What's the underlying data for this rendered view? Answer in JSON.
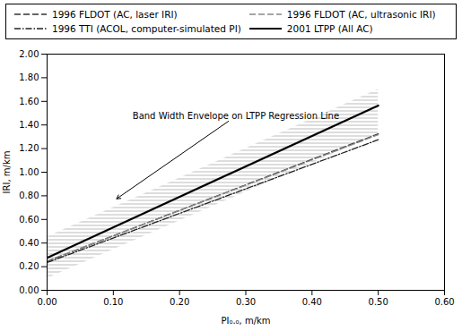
{
  "chart_data": {
    "type": "line",
    "x": [
      0.0,
      0.5
    ],
    "series": [
      {
        "name": "1996 FLDOT (AC, laser IRI)",
        "color": "#333333",
        "line_style": "dashed",
        "values": [
          0.245,
          1.325
        ]
      },
      {
        "name": "1996 TTI (ACOL, computer-simulated PI)",
        "color": "#222222",
        "line_style": "dashdot",
        "values": [
          0.235,
          1.275
        ]
      },
      {
        "name": "1996 FLDOT (AC, ultrasonic IRI)",
        "color": "#888888",
        "line_style": "dashed",
        "values": [
          0.248,
          1.318
        ]
      },
      {
        "name": "2001 LTPP (All AC)",
        "color": "#000000",
        "line_style": "solid",
        "values": [
          0.275,
          1.565
        ]
      }
    ],
    "band": {
      "lower": [
        0.1,
        1.32
      ],
      "upper": [
        0.45,
        1.7
      ],
      "color": "#bbbbbb"
    },
    "annotations": [
      {
        "text": "Band Width Envelope on LTPP Regression Line",
        "x": 0.285,
        "y": 1.475,
        "arrow_x": 0.105,
        "arrow_y": 0.775
      }
    ],
    "xlabel": "PI₀.₀, m/km",
    "ylabel": "IRI, m/km",
    "xlim": [
      0.0,
      0.6
    ],
    "ylim": [
      0.0,
      2.0
    ],
    "xticks": [
      {
        "value": 0.0,
        "label": "0.00"
      },
      {
        "value": 0.1,
        "label": "0.10"
      },
      {
        "value": 0.2,
        "label": "0.20"
      },
      {
        "value": 0.3,
        "label": "0.30"
      },
      {
        "value": 0.4,
        "label": "0.40"
      },
      {
        "value": 0.5,
        "label": "0.50"
      },
      {
        "value": 0.6,
        "label": "0.60"
      }
    ],
    "yticks": [
      {
        "value": 0.0,
        "label": "0.00"
      },
      {
        "value": 0.2,
        "label": "0.20"
      },
      {
        "value": 0.4,
        "label": "0.40"
      },
      {
        "value": 0.6,
        "label": "0.60"
      },
      {
        "value": 0.8,
        "label": "0.80"
      },
      {
        "value": 1.0,
        "label": "1.00"
      },
      {
        "value": 1.2,
        "label": "1.20"
      },
      {
        "value": 1.4,
        "label": "1.40"
      },
      {
        "value": 1.6,
        "label": "1.60"
      },
      {
        "value": 1.8,
        "label": "1.80"
      },
      {
        "value": 2.0,
        "label": "2.00"
      }
    ],
    "grid": false,
    "legend": "top"
  }
}
